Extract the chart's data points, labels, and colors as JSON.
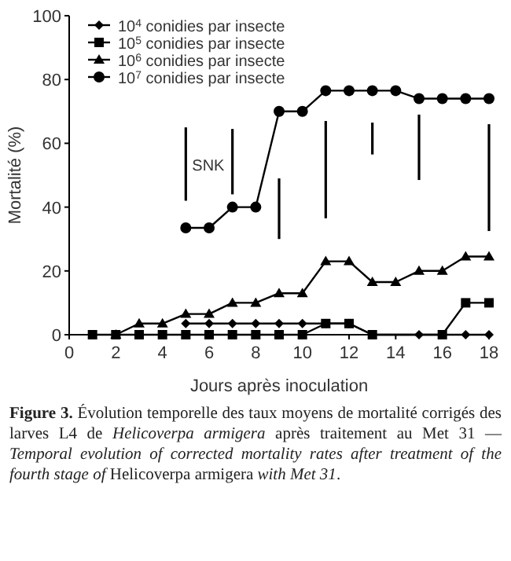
{
  "chart_data": {
    "type": "line",
    "xlabel": "Jours après inoculation",
    "ylabel": "Mortalité (%)",
    "xlim": [
      0,
      18
    ],
    "xticks": [
      0,
      2,
      4,
      6,
      8,
      10,
      12,
      14,
      16,
      18
    ],
    "ylim": [
      0,
      100
    ],
    "yticks": [
      0,
      20,
      40,
      60,
      80,
      100
    ],
    "legend": "top left",
    "grid": false,
    "line_style": "solid",
    "series": [
      {
        "name": "10$^{4}$ conidies par insecte",
        "color": "#000000",
        "marker": "diamond",
        "x": [
          5,
          6,
          7,
          8,
          9,
          10,
          11,
          12,
          13,
          15,
          16,
          17,
          18
        ],
        "values": [
          3.5,
          3.5,
          3.5,
          3.5,
          3.5,
          3.5,
          3.5,
          3.5,
          0,
          0,
          0,
          0,
          0
        ]
      },
      {
        "name": "10$^{5}$ conidies par insecte",
        "color": "#000000",
        "marker": "square",
        "x": [
          1,
          2,
          3,
          4,
          5,
          6,
          7,
          8,
          9,
          10,
          11,
          12,
          13,
          16,
          17,
          18
        ],
        "values": [
          0,
          0,
          0,
          0,
          0,
          0,
          0,
          0,
          0,
          0,
          3.5,
          3.5,
          0,
          0,
          10,
          10
        ]
      },
      {
        "name": "10$^{6}$ conidies par insecte",
        "color": "#000000",
        "marker": "triangle",
        "x": [
          2,
          3,
          4,
          5,
          6,
          7,
          8,
          9,
          10,
          11,
          12,
          13,
          14,
          15,
          16,
          17,
          18
        ],
        "values": [
          0,
          3.5,
          3.5,
          6.5,
          6.5,
          10,
          10,
          13,
          13,
          23,
          23,
          16.5,
          16.5,
          20,
          20,
          24.5,
          24.5
        ]
      },
      {
        "name": "10$^{7}$ conidies par insecte",
        "color": "#000000",
        "marker": "circle",
        "x": [
          5,
          6,
          7,
          8,
          9,
          10,
          11,
          12,
          13,
          14,
          15,
          16,
          17,
          18
        ],
        "values": [
          33.5,
          33.5,
          40,
          40,
          70,
          70,
          76.5,
          76.5,
          76.5,
          76.5,
          74,
          74,
          74,
          74
        ]
      },
      {
        "type": "bar",
        "color": "#000000",
        "x": [
          5,
          7,
          9,
          11,
          13,
          15,
          18
        ],
        "base": [
          42,
          44,
          30,
          36.5,
          56.5,
          48.5,
          32.5
        ],
        "values": [
          23,
          20.5,
          19,
          30.5,
          10,
          20.5,
          33.5
        ]
      }
    ],
    "annotations": [
      "SNK",
      "**Figure 3.** Évolution temporelle des taux moyens de mortalité corrigés des larves L4 de *Helicoverpa armigera* après traitement au Met 31 — *Temporal evolution of corrected mortality rates after treatment of the fourth stage of* Helicoverpa armigera *with Met 31*."
    ]
  }
}
